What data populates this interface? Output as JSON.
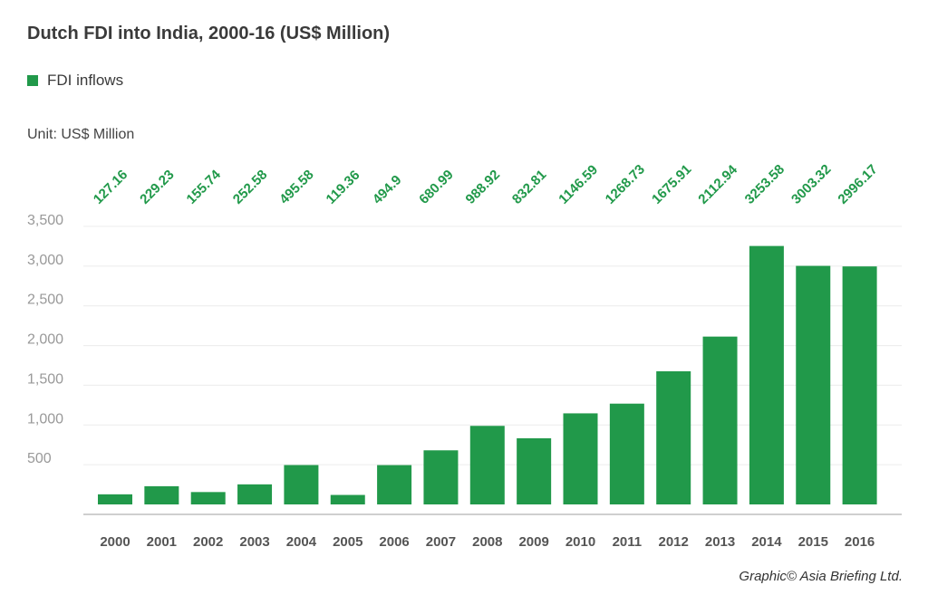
{
  "chart_data": {
    "type": "bar",
    "title": "Dutch FDI into India, 2000-16 (US$ Million)",
    "unit_label": "Unit: US$ Million",
    "legend": [
      {
        "label": "FDI inflows",
        "color": "#21994a"
      }
    ],
    "categories": [
      "2000",
      "2001",
      "2002",
      "2003",
      "2004",
      "2005",
      "2006",
      "2007",
      "2008",
      "2009",
      "2010",
      "2011",
      "2012",
      "2013",
      "2014",
      "2015",
      "2016"
    ],
    "values": [
      127.16,
      229.23,
      155.74,
      252.58,
      495.58,
      119.36,
      494.9,
      680.99,
      988.92,
      832.81,
      1146.59,
      1268.73,
      1675.91,
      2112.94,
      3253.58,
      3003.32,
      2996.17
    ],
    "value_labels": [
      "127.16",
      "229.23",
      "155.74",
      "252.58",
      "495.58",
      "119.36",
      "494.9",
      "680.99",
      "988.92",
      "832.81",
      "1146.59",
      "1268.73",
      "1675.91",
      "2112.94",
      "3253.58",
      "3003.32",
      "2996.17"
    ],
    "yticks": [
      500,
      1000,
      1500,
      2000,
      2500,
      3000,
      3500
    ],
    "ytick_labels": [
      "500",
      "1,000",
      "1,500",
      "2,000",
      "2,500",
      "3,000",
      "3,500"
    ],
    "ylim": [
      0,
      3500
    ],
    "grid": true,
    "legend_position": "top-left",
    "bar_color": "#21994a",
    "label_color": "#21994a"
  },
  "credit": "Graphic© Asia Briefing Ltd."
}
